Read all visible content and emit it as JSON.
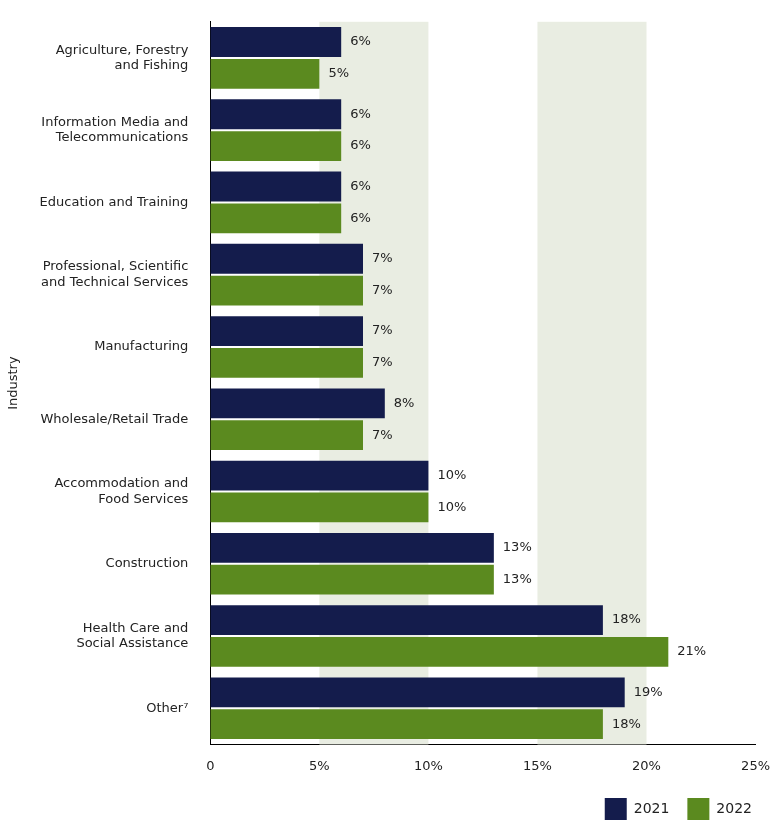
{
  "chart_data": {
    "type": "bar",
    "orientation": "horizontal",
    "y_label": "Industry",
    "categories": [
      "Agriculture, Forestry\nand Fishing",
      "Information Media and\nTelecommunications",
      "Education and Training",
      "Professional, Scientific\nand Technical Services",
      "Manufacturing",
      "Wholesale/Retail Trade",
      "Accommodation and\nFood Services",
      "Construction",
      "Health Care and\nSocial Assistance",
      "Other⁷"
    ],
    "series": [
      {
        "name": "2021",
        "color": "#141c4c",
        "values": [
          6,
          6,
          6,
          7,
          7,
          8,
          10,
          13,
          18,
          19
        ],
        "value_labels": [
          "6%",
          "6%",
          "6%",
          "7%",
          "7%",
          "8%",
          "10%",
          "13%",
          "18%",
          "19%"
        ]
      },
      {
        "name": "2022",
        "color": "#5b8a1f",
        "values": [
          5,
          6,
          6,
          7,
          7,
          7,
          10,
          13,
          21,
          18
        ],
        "value_labels": [
          "5%",
          "6%",
          "6%",
          "7%",
          "7%",
          "7%",
          "10%",
          "13%",
          "21%",
          "18%"
        ]
      }
    ],
    "xlim": [
      0,
      25
    ],
    "xticks": [
      0,
      {
        "value": 5,
        "label": "5%"
      },
      {
        "value": 10,
        "label": "10%"
      },
      {
        "value": 15,
        "label": "15%"
      },
      {
        "value": 20,
        "label": "20%"
      },
      {
        "value": 25,
        "label": "25%"
      }
    ],
    "grid": true,
    "legend": "bottom-right",
    "data_labels": true
  }
}
